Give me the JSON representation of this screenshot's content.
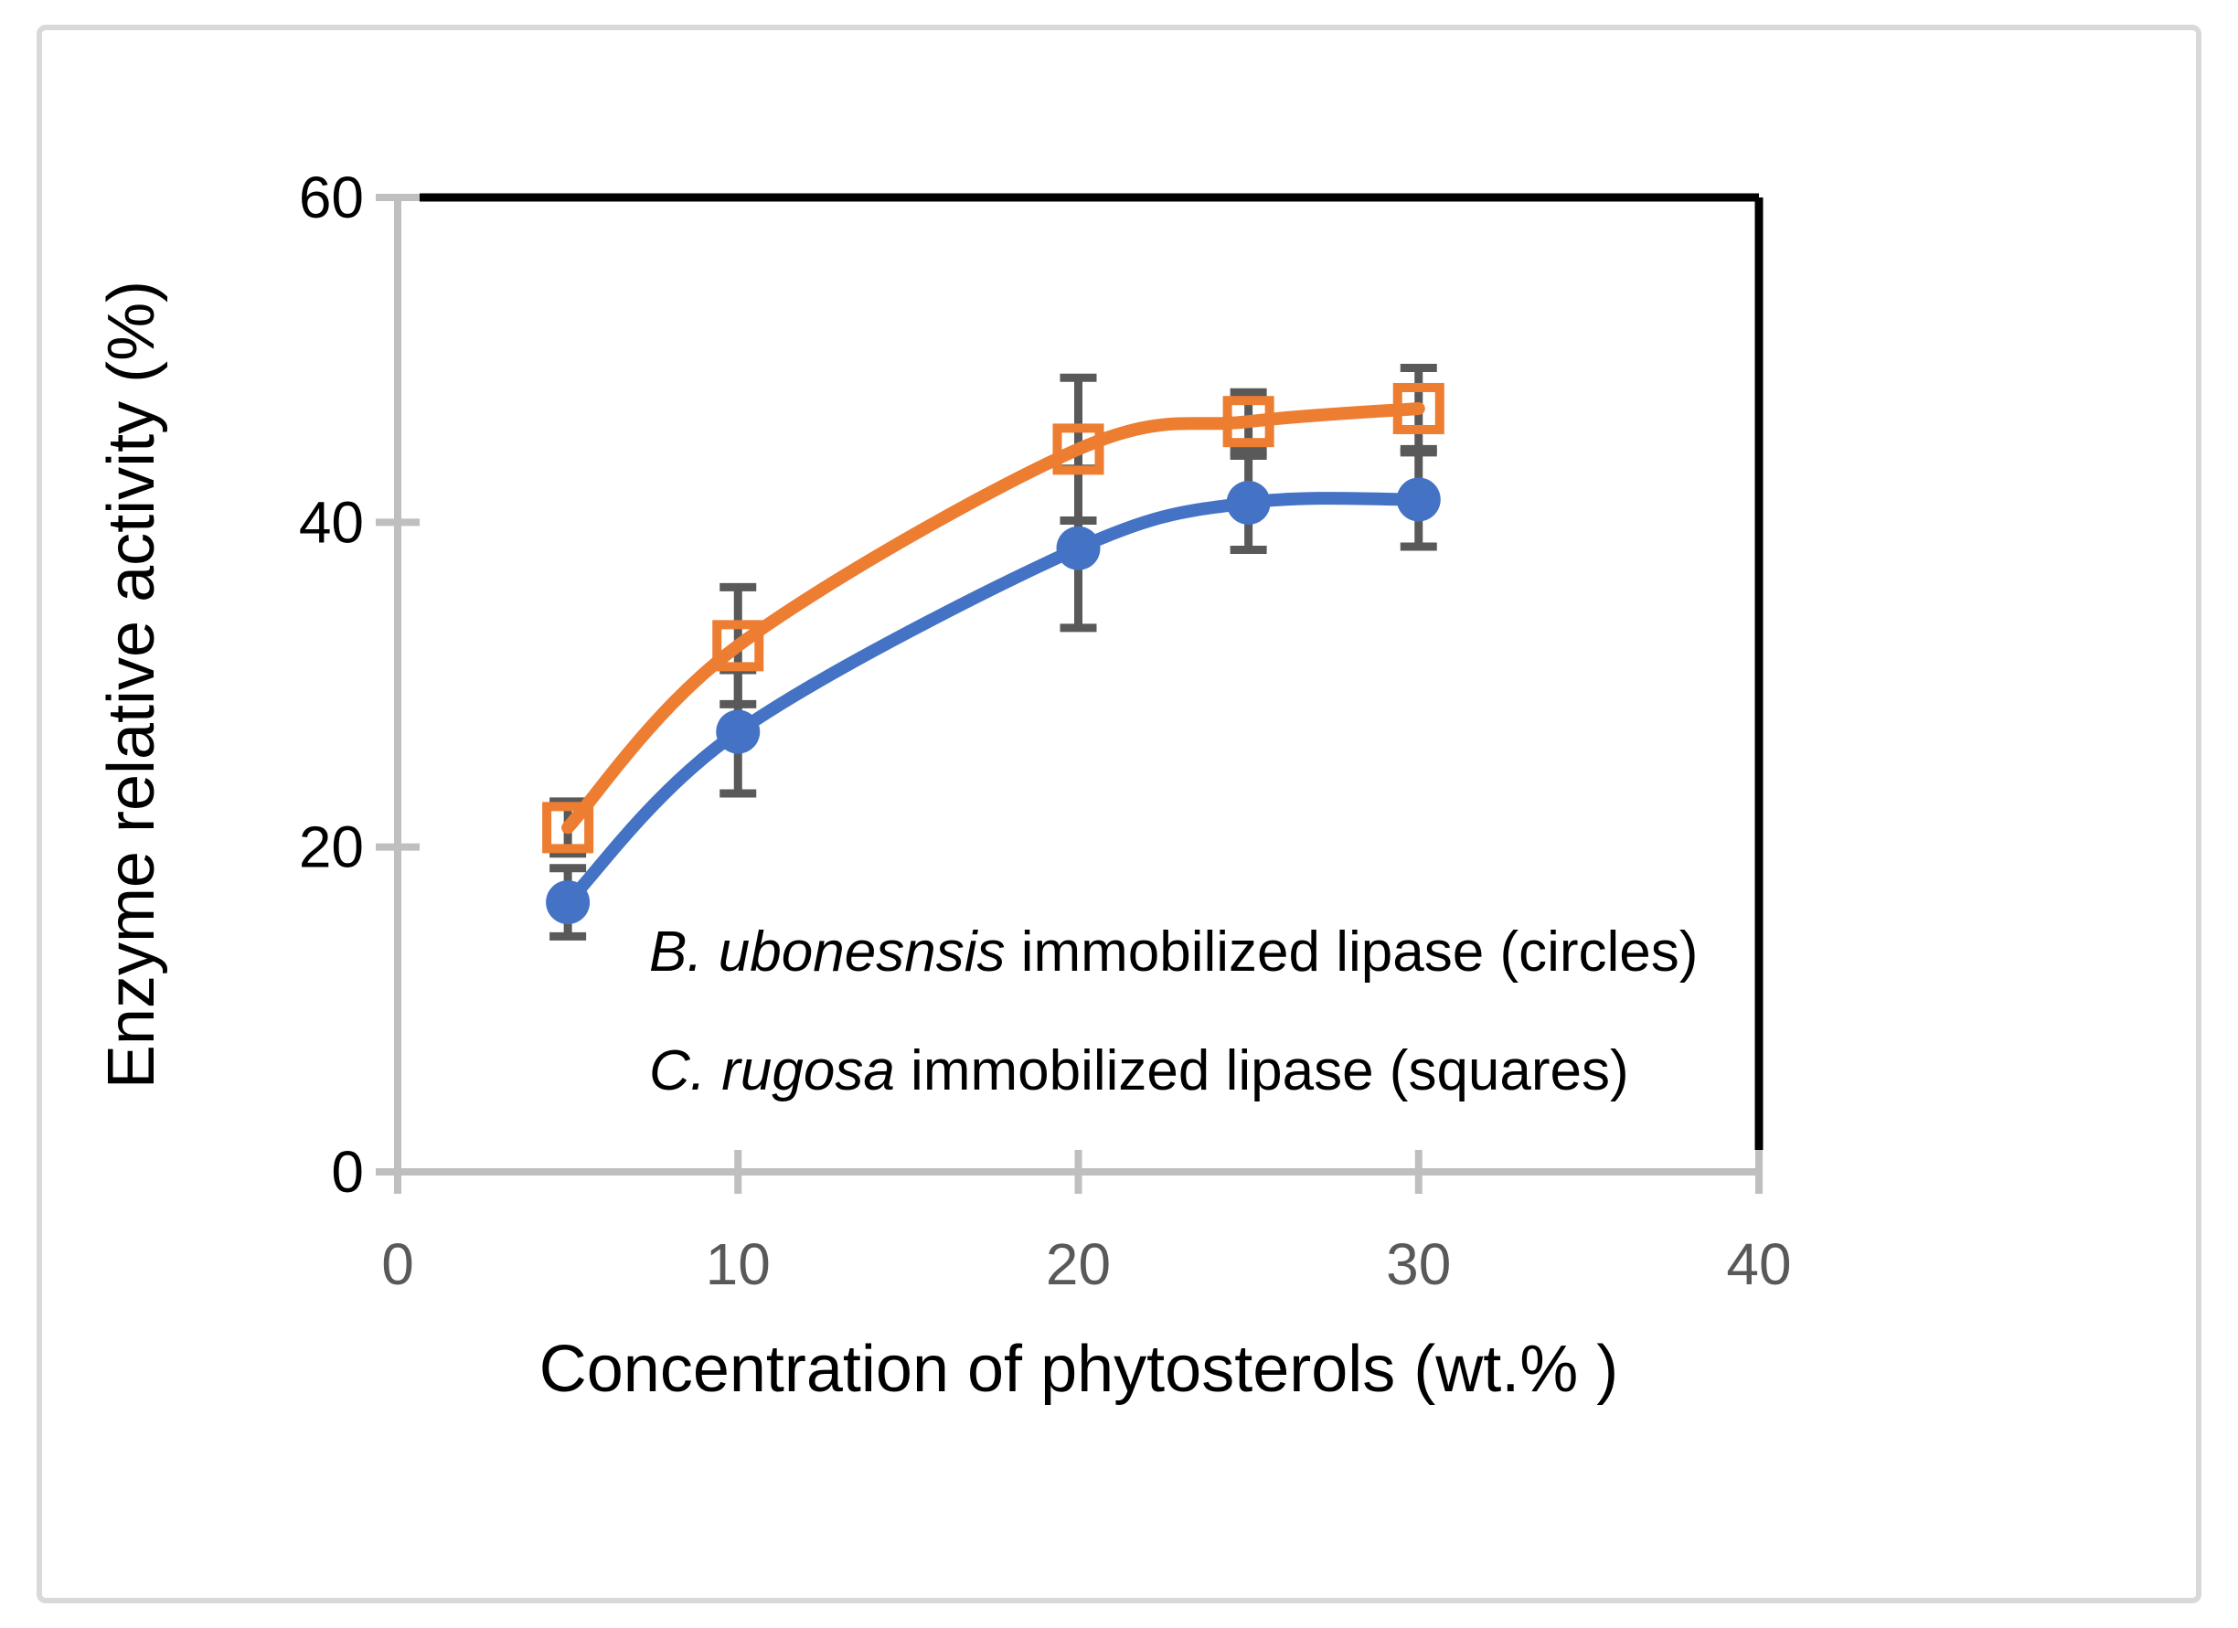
{
  "figure": {
    "border_color": "#d9d9d9",
    "background_color": "#ffffff"
  },
  "chart_data": {
    "type": "line",
    "title": "",
    "xlabel": "Concentration of phytosterols (wt.% )",
    "ylabel": "Enzyme relative activity (%)",
    "xlim": [
      0,
      40
    ],
    "ylim": [
      0,
      60
    ],
    "x_ticks": [
      0,
      10,
      20,
      30,
      40
    ],
    "y_ticks": [
      0,
      20,
      40,
      60
    ],
    "grid": false,
    "legend_position": "inside-plot-text-annotations",
    "line_style": "smooth",
    "series": [
      {
        "name": "B. ubonesnsis immobilized lipase",
        "marker": "circle",
        "marker_fill": "filled",
        "color": "#4472C4",
        "x": [
          5,
          10,
          20,
          25,
          30
        ],
        "y": [
          16.6,
          27.1,
          38.4,
          41.2,
          41.4
        ],
        "y_err": [
          2.1,
          3.8,
          4.9,
          2.9,
          2.9
        ]
      },
      {
        "name": "C. rugosa immobilized lipase",
        "marker": "square",
        "marker_fill": "open",
        "color": "#ED7D31",
        "x": [
          5,
          10,
          20,
          25,
          30
        ],
        "y": [
          21.2,
          32.4,
          44.5,
          46.2,
          47.0
        ],
        "y_err": [
          1.6,
          3.6,
          4.4,
          1.8,
          2.5
        ]
      }
    ],
    "colors": {
      "error_bar": "#595959",
      "axis_line": "#bfbfbf",
      "frame_line": "#000000",
      "x_tick_label": "#595959",
      "y_tick_label": "#000000"
    },
    "annotations": [
      {
        "italic": "B. ubonesnsis",
        "rest": " immobilized lipase (circles)"
      },
      {
        "italic": "C. rugosa",
        "rest": " immobilized lipase (squares)"
      }
    ]
  }
}
